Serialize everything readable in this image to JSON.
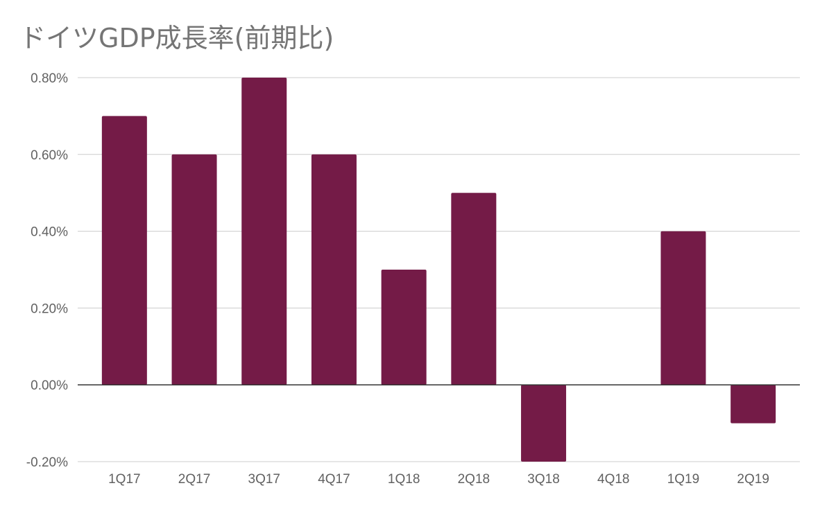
{
  "chart_data": {
    "type": "bar",
    "title": "ドイツGDP成長率(前期比)",
    "categories": [
      "1Q17",
      "2Q17",
      "3Q17",
      "4Q17",
      "1Q18",
      "2Q18",
      "3Q18",
      "4Q18",
      "1Q19",
      "2Q19"
    ],
    "series": [
      {
        "values": [
          0.7,
          0.6,
          0.8,
          0.6,
          0.3,
          0.5,
          -0.2,
          0.0,
          0.4,
          -0.1
        ]
      }
    ],
    "value_unit": "%",
    "ylim": [
      -0.2,
      0.8
    ],
    "yticks": [
      "-0.20%",
      "0.00%",
      "0.20%",
      "0.40%",
      "0.60%",
      "0.80%"
    ],
    "ytick_values": [
      -0.2,
      0.0,
      0.2,
      0.4,
      0.6,
      0.8
    ],
    "grid": true,
    "legend": "none",
    "colors": {
      "bar": "#741b47",
      "grid": "#cccccc",
      "zero_line": "#333333",
      "text": "#616161",
      "title": "#757575"
    }
  }
}
